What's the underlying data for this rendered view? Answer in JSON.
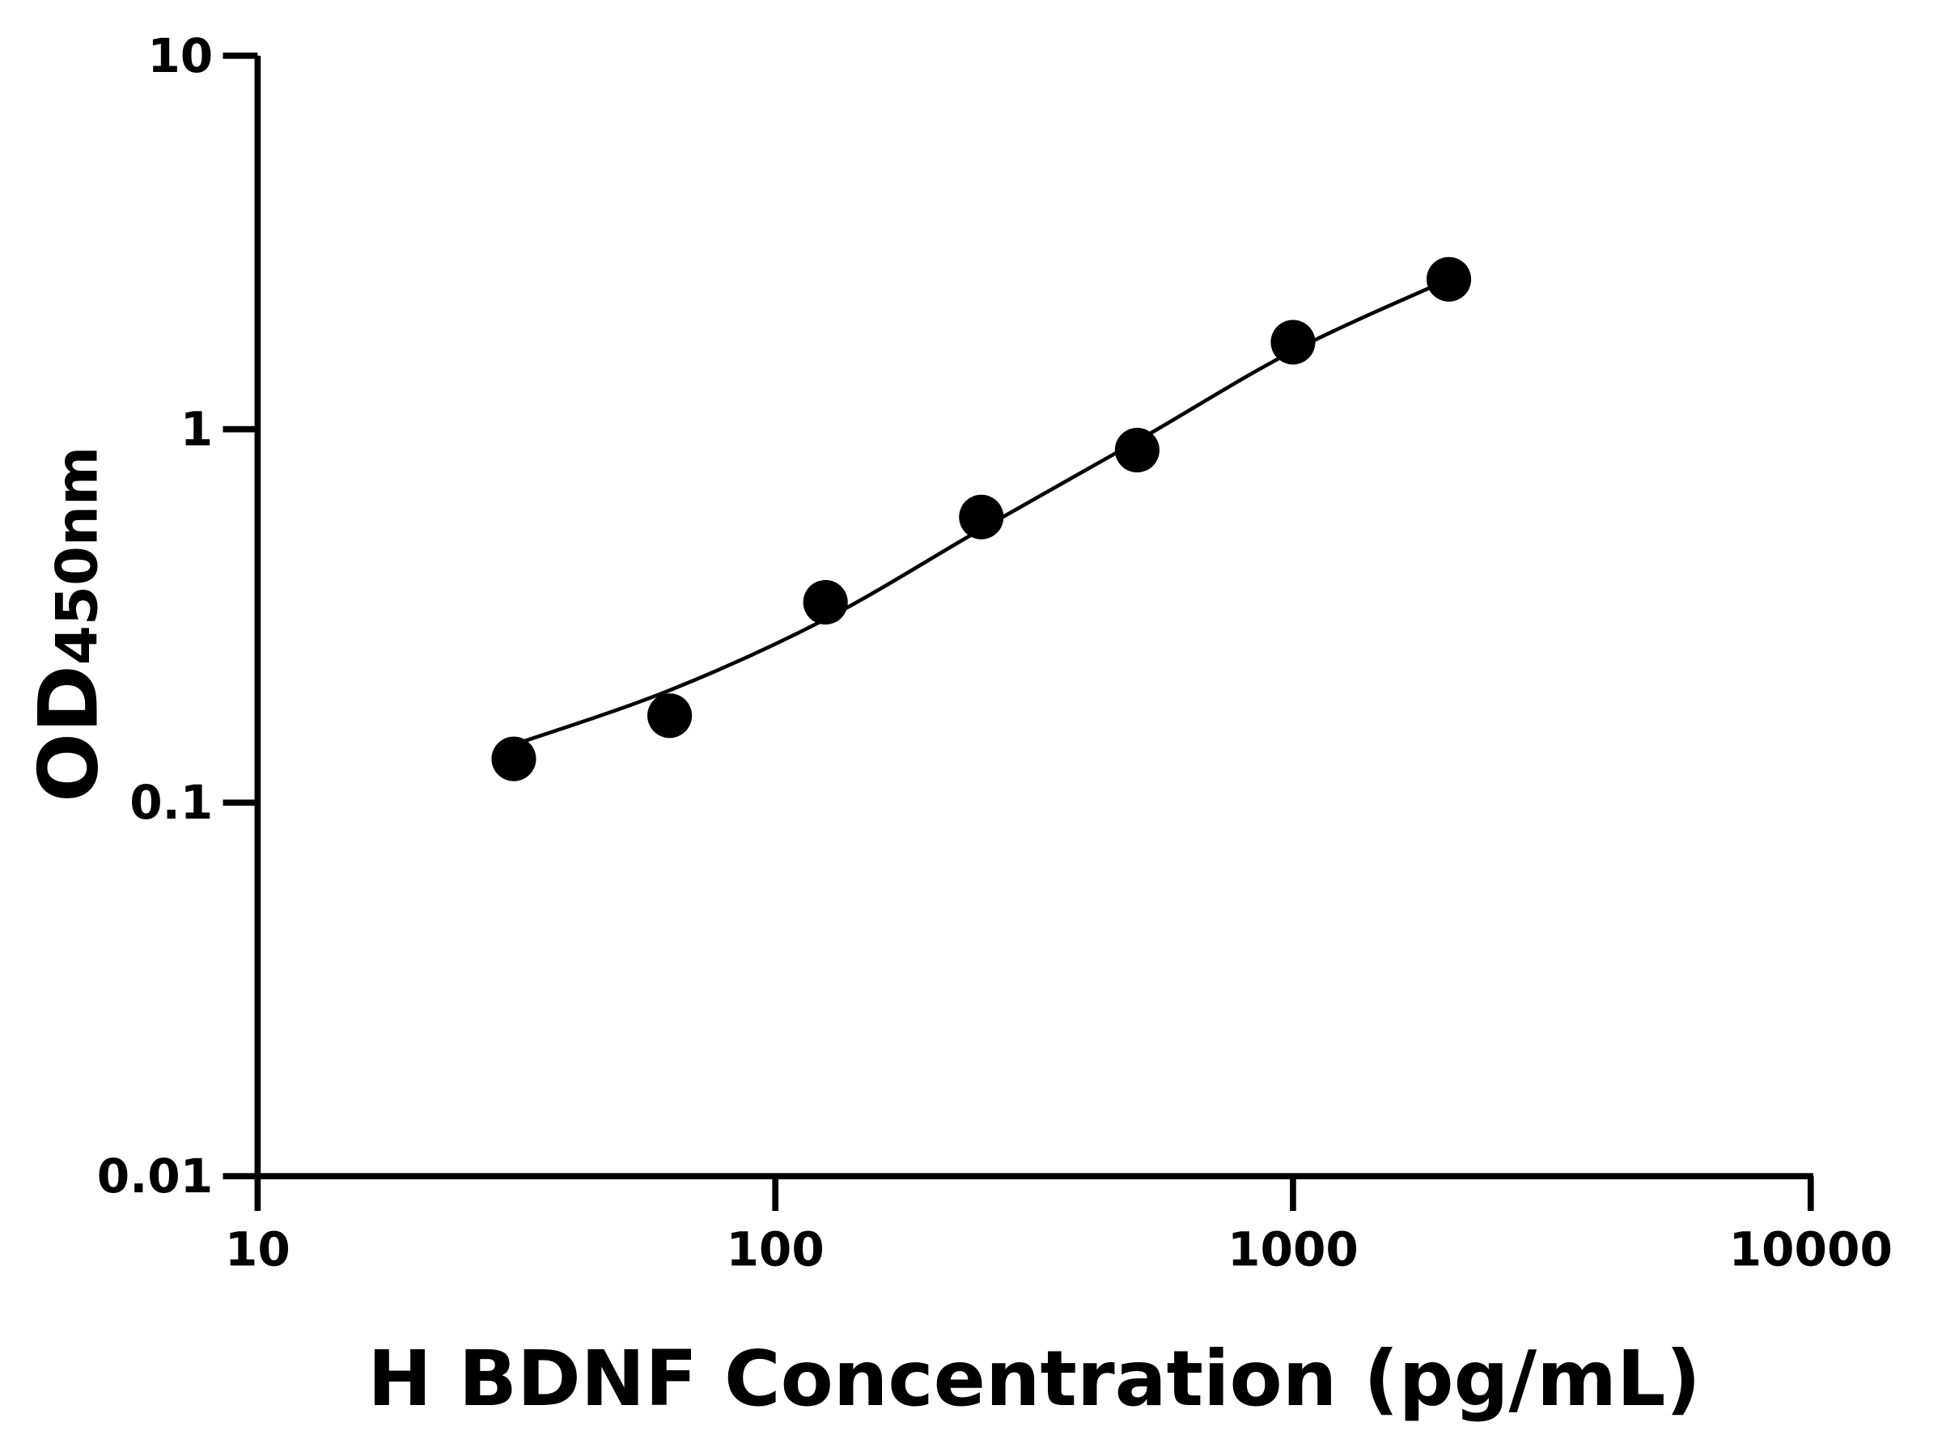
{
  "chart_data": {
    "type": "scatter",
    "title": "",
    "xlabel": "H BDNF Concentration (pg/mL)",
    "ylabel_main": "OD",
    "ylabel_sub": "450nm",
    "x_scale": "log",
    "y_scale": "log",
    "xlim": [
      10,
      10000
    ],
    "ylim": [
      0.01,
      10
    ],
    "x_ticks": [
      10,
      100,
      1000,
      10000
    ],
    "x_tick_labels": [
      "10",
      "100",
      "1000",
      "10000"
    ],
    "y_ticks": [
      0.01,
      0.1,
      1,
      10
    ],
    "y_tick_labels": [
      "0.01",
      "0.1",
      "1",
      "10"
    ],
    "grid": false,
    "legend": "none",
    "marker_color": "#000000",
    "series": [
      {
        "type": "scatter",
        "x": [
          31.25,
          62.5,
          125,
          250,
          500,
          1000,
          2000
        ],
        "y": [
          0.131,
          0.171,
          0.344,
          0.582,
          0.879,
          1.71,
          2.52
        ]
      },
      {
        "type": "line",
        "x": [
          31.25,
          62.5,
          125,
          250,
          500,
          1000,
          2000
        ],
        "y": [
          0.143,
          0.2,
          0.31,
          0.54,
          0.93,
          1.62,
          2.52
        ]
      }
    ]
  }
}
